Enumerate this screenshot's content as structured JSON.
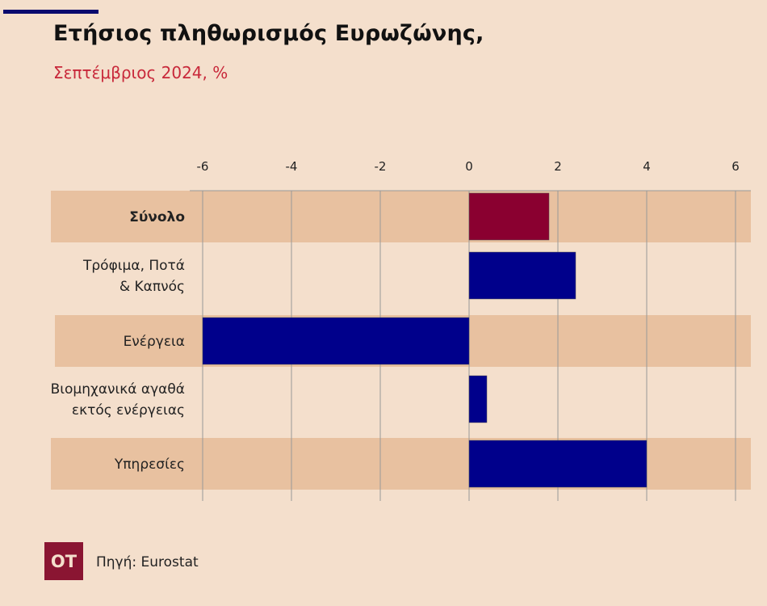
{
  "title": "Ετήσιος πληθωρισμός Ευρωζώνης,",
  "subtitle": "Σεπτέμβριος 2024, %",
  "source": "Πηγή: Eurostat",
  "logo": "OT",
  "colors": {
    "background": "#f4dfcc",
    "band": "#e8c1a0",
    "total_bar": "#8a0030",
    "bar": "#00008b",
    "subtitle": "#c8283a"
  },
  "chart_data": {
    "type": "bar",
    "orientation": "horizontal",
    "categories": [
      [
        "Σύνολο"
      ],
      [
        "Τρόφιμα, Ποτά",
        "& Καπνός"
      ],
      [
        "Ενέργεια"
      ],
      [
        "Βιομηχανικά αγαθά",
        "εκτός ενέργειας"
      ],
      [
        "Υπηρεσίες"
      ]
    ],
    "values": [
      1.8,
      2.4,
      -6.0,
      0.4,
      4.0
    ],
    "highlight": [
      true,
      false,
      false,
      false,
      false
    ],
    "xlim": [
      -6,
      6
    ],
    "ticks": [
      -6,
      -4,
      -2,
      0,
      2,
      4,
      6
    ],
    "tick_position": "top",
    "grid": true
  }
}
